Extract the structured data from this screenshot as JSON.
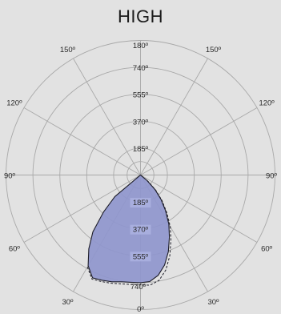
{
  "chart_data": {
    "type": "polar",
    "title": "HIGH",
    "radial_ticks": [
      "185º",
      "370º",
      "555º",
      "740º"
    ],
    "radial_max": 925,
    "angle_labels": {
      "top": "180º",
      "bottom": "0º",
      "left": [
        "150º",
        "120º",
        "90º",
        "60º",
        "30º"
      ],
      "right": [
        "150º",
        "120º",
        "90º",
        "60º",
        "30º"
      ]
    },
    "angle_label_degrees": [
      180,
      150,
      120,
      90,
      60,
      30,
      0
    ],
    "series": [
      {
        "style": "solid",
        "points": [
          {
            "angle": -30,
            "value": 720
          },
          {
            "angle": -25,
            "value": 780
          },
          {
            "angle": -20,
            "value": 770
          },
          {
            "angle": -15,
            "value": 760
          },
          {
            "angle": -10,
            "value": 745
          },
          {
            "angle": -5,
            "value": 740
          },
          {
            "angle": 0,
            "value": 740
          },
          {
            "angle": 5,
            "value": 735
          },
          {
            "angle": 10,
            "value": 700
          },
          {
            "angle": 15,
            "value": 640
          },
          {
            "angle": 20,
            "value": 560
          },
          {
            "angle": 25,
            "value": 470
          },
          {
            "angle": 30,
            "value": 390
          },
          {
            "angle": 35,
            "value": 300
          },
          {
            "angle": 40,
            "value": 220
          },
          {
            "angle": 45,
            "value": 140
          },
          {
            "angle": 50,
            "value": 60
          },
          {
            "angle": 55,
            "value": 0
          },
          {
            "angle": -55,
            "value": 0
          },
          {
            "angle": -50,
            "value": 230
          },
          {
            "angle": -45,
            "value": 360
          },
          {
            "angle": -40,
            "value": 510
          },
          {
            "angle": -35,
            "value": 620
          }
        ]
      },
      {
        "style": "dashed",
        "points": [
          {
            "angle": -30,
            "value": 730
          },
          {
            "angle": -25,
            "value": 790
          },
          {
            "angle": -20,
            "value": 780
          },
          {
            "angle": -15,
            "value": 770
          },
          {
            "angle": -10,
            "value": 760
          },
          {
            "angle": -5,
            "value": 755
          },
          {
            "angle": 0,
            "value": 755
          },
          {
            "angle": 5,
            "value": 760
          },
          {
            "angle": 10,
            "value": 735
          },
          {
            "angle": 15,
            "value": 675
          },
          {
            "angle": 20,
            "value": 590
          },
          {
            "angle": 25,
            "value": 495
          },
          {
            "angle": 30,
            "value": 410
          },
          {
            "angle": 35,
            "value": 315
          },
          {
            "angle": 40,
            "value": 230
          },
          {
            "angle": 45,
            "value": 150
          },
          {
            "angle": 50,
            "value": 70
          },
          {
            "angle": 55,
            "value": 0
          }
        ]
      }
    ],
    "grid": true,
    "colors": {
      "fill": "#8f96cd",
      "outline": "#1e1e2a",
      "grid": "#a9a9a9",
      "background": "#e2e2e2"
    }
  }
}
